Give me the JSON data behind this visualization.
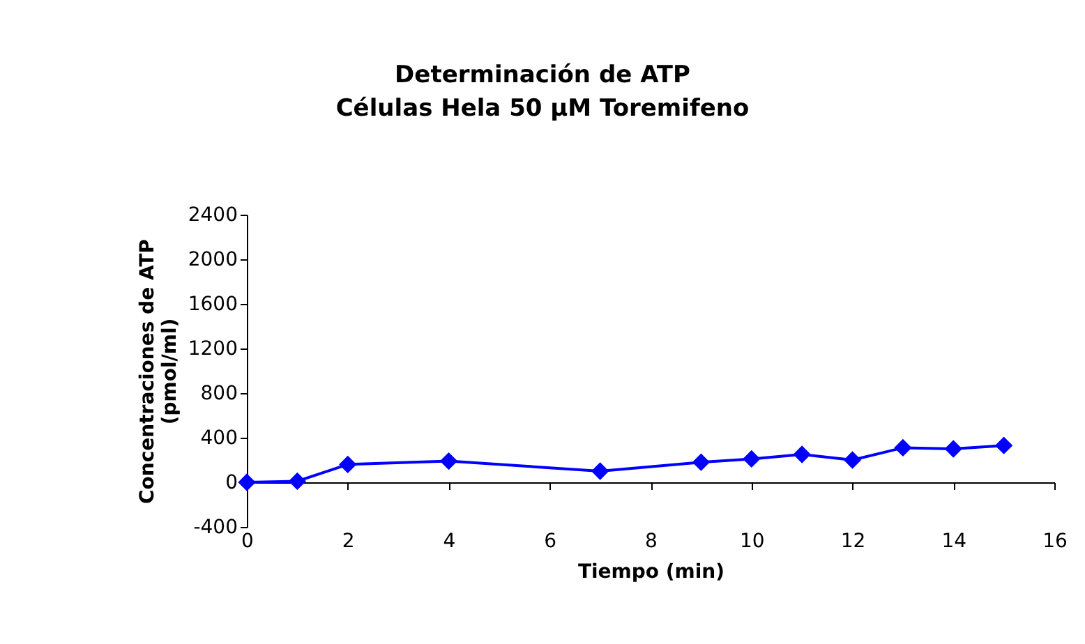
{
  "chart_data": {
    "type": "line",
    "title": "Determinación de ATP\nCélulas Hela 50 µM Toremifeno",
    "xlabel": "Tiempo (min)",
    "ylabel": "Concentraciones de ATP\n(pmol/ml)",
    "x": [
      0,
      1,
      2,
      4,
      7,
      9,
      10,
      11,
      12,
      13,
      14,
      15
    ],
    "series": [
      {
        "color": "#0000ff",
        "values": [
          0,
          10,
          160,
          190,
          100,
          180,
          210,
          250,
          200,
          310,
          300,
          330
        ]
      }
    ],
    "xlim": [
      0,
      16
    ],
    "xticks": [
      0,
      2,
      4,
      6,
      8,
      10,
      12,
      14,
      16
    ],
    "ylim": [
      -400,
      2400
    ],
    "yticks": [
      -400,
      0,
      400,
      800,
      1200,
      1600,
      2000,
      2400
    ],
    "marker": "diamond",
    "line_style": "solid"
  }
}
